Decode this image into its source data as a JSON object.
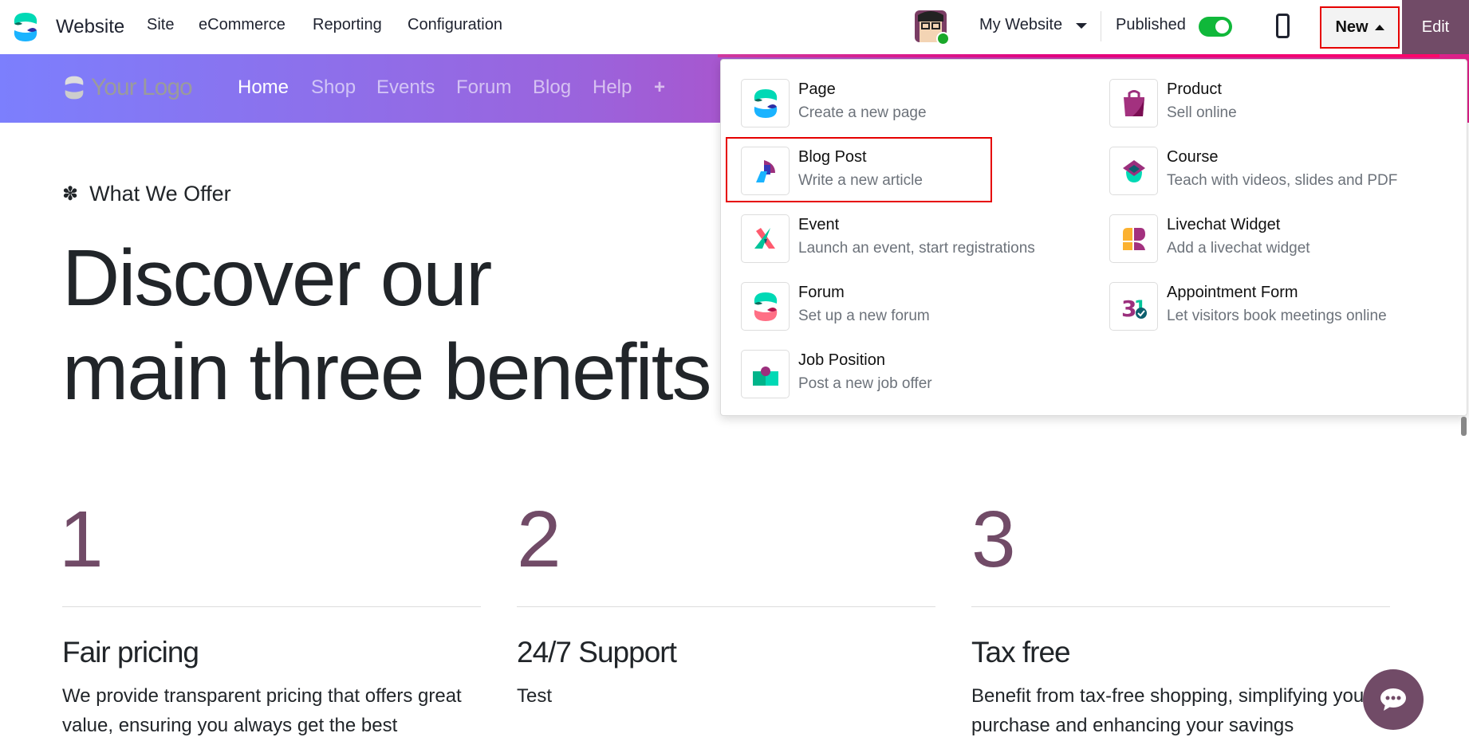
{
  "topbar": {
    "app_name": "Website",
    "menu": [
      "Site",
      "eCommerce",
      "Reporting",
      "Configuration"
    ],
    "website_selector": "My Website",
    "published_label": "Published",
    "published": true,
    "new_label": "New",
    "edit_label": "Edit"
  },
  "site_header": {
    "logo_text": "Your Logo",
    "nav": [
      "Home",
      "Shop",
      "Events",
      "Forum",
      "Blog",
      "Help",
      "+"
    ]
  },
  "content": {
    "eyebrow": "What We Offer",
    "headline_line1": "Discover our",
    "headline_line2": "main three benefits",
    "columns": [
      {
        "number": "1",
        "title": "Fair pricing",
        "body": "We provide transparent pricing that offers great value, ensuring you always get the best"
      },
      {
        "number": "2",
        "title": "24/7 Support",
        "body": "Test"
      },
      {
        "number": "3",
        "title": "Tax free",
        "body": "Benefit from tax-free shopping, simplifying your purchase and enhancing your savings"
      }
    ]
  },
  "new_menu": {
    "items": [
      {
        "title": "Page",
        "subtitle": "Create a new page",
        "icon": "page-icon"
      },
      {
        "title": "Product",
        "subtitle": "Sell online",
        "icon": "shopping-bag-icon"
      },
      {
        "title": "Blog Post",
        "subtitle": "Write a new article",
        "icon": "blog-icon"
      },
      {
        "title": "Course",
        "subtitle": "Teach with videos, slides and PDF",
        "icon": "graduation-cap-icon"
      },
      {
        "title": "Event",
        "subtitle": "Launch an event, start registrations",
        "icon": "event-icon"
      },
      {
        "title": "Livechat Widget",
        "subtitle": "Add a livechat widget",
        "icon": "livechat-icon"
      },
      {
        "title": "Forum",
        "subtitle": "Set up a new forum",
        "icon": "forum-icon"
      },
      {
        "title": "Appointment Form",
        "subtitle": "Let visitors book meetings online",
        "icon": "appointment-icon"
      },
      {
        "title": "Job Position",
        "subtitle": "Post a new job offer",
        "icon": "job-icon"
      }
    ],
    "highlighted": "Blog Post"
  },
  "colors": {
    "brand": "#714b67",
    "toggle_on": "#10b83a",
    "highlight": "#e60000"
  }
}
